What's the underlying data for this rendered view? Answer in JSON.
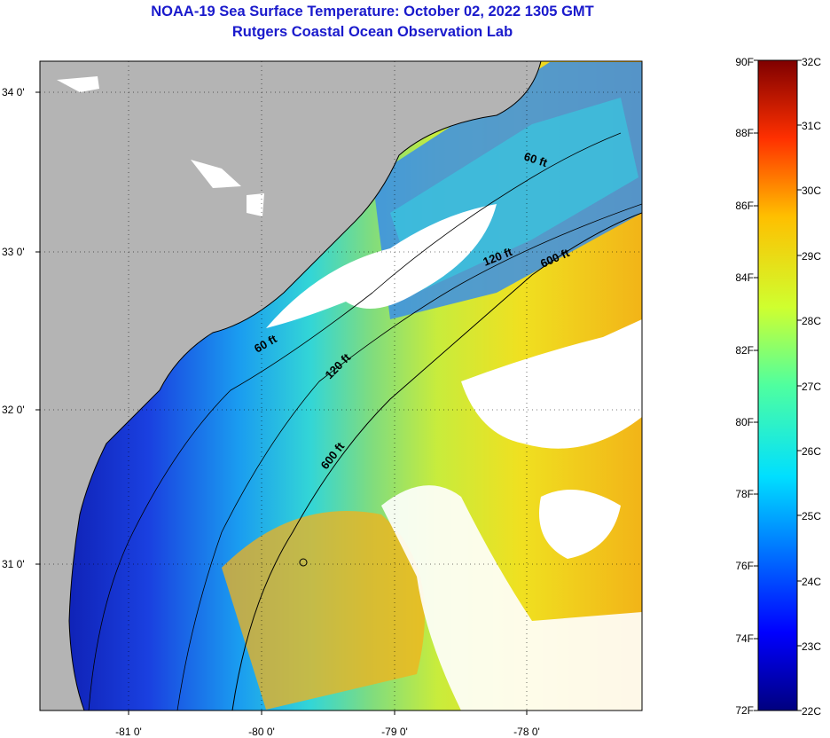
{
  "title": "NOAA-19 Sea Surface Temperature:  October 02, 2022 1305 GMT",
  "subtitle": "Rutgers Coastal Ocean Observation Lab",
  "map": {
    "lat_ticks": [
      "34 0'",
      "33 0'",
      "32 0'",
      "31 0'"
    ],
    "lon_ticks": [
      "-81 0'",
      "-80 0'",
      "-79 0'",
      "-78 0'"
    ],
    "contour_labels": [
      "60 ft",
      "120 ft",
      "600 ft",
      "60 ft",
      "120 ft",
      "600 ft"
    ],
    "colors": {
      "land": "#b4b4b4",
      "cloud": "#ffffff"
    }
  },
  "colorbar": {
    "fahrenheit": [
      "90F",
      "88F",
      "86F",
      "84F",
      "82F",
      "80F",
      "78F",
      "76F",
      "74F",
      "72F"
    ],
    "celsius": [
      "32C",
      "31C",
      "30C",
      "29C",
      "28C",
      "27C",
      "26C",
      "25C",
      "24C",
      "23C",
      "22C"
    ]
  }
}
